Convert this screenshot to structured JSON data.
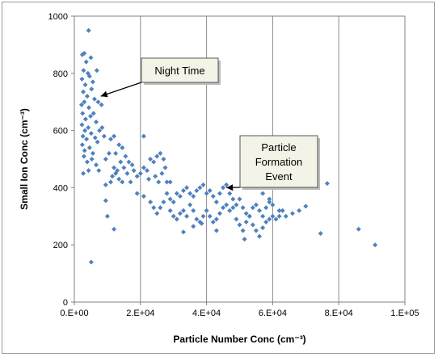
{
  "chart_data": {
    "type": "scatter",
    "xlabel": "Particle Number Conc (cm⁻³)",
    "ylabel": "Small Ion Conc (cm⁻³)",
    "xlim": [
      0,
      100000
    ],
    "ylim": [
      0,
      1000
    ],
    "x_ticks": [
      "0.E+00",
      "2.E+04",
      "4.E+04",
      "6.E+04",
      "8.E+04",
      "1.E+05"
    ],
    "y_ticks": [
      "0",
      "200",
      "400",
      "600",
      "800",
      "1000"
    ],
    "grid": "vertical",
    "marker_color": "#4f81bd",
    "annotations": [
      {
        "lines": [
          "Night Time"
        ],
        "points_to": [
          8000,
          720
        ]
      },
      {
        "lines": [
          "Particle",
          "Formation",
          "Event"
        ],
        "points_to": [
          46000,
          400
        ]
      }
    ],
    "points": [
      [
        4300,
        950
      ],
      [
        2400,
        865
      ],
      [
        3000,
        870
      ],
      [
        3600,
        840
      ],
      [
        5000,
        855
      ],
      [
        4100,
        800
      ],
      [
        2800,
        810
      ],
      [
        6800,
        810
      ],
      [
        2300,
        780
      ],
      [
        3300,
        760
      ],
      [
        4600,
        790
      ],
      [
        5600,
        770
      ],
      [
        2700,
        735
      ],
      [
        3900,
        720
      ],
      [
        5200,
        745
      ],
      [
        6100,
        710
      ],
      [
        7200,
        700
      ],
      [
        8200,
        690
      ],
      [
        2200,
        690
      ],
      [
        3000,
        700
      ],
      [
        4400,
        680
      ],
      [
        2500,
        660
      ],
      [
        3400,
        640
      ],
      [
        4900,
        650
      ],
      [
        5800,
        660
      ],
      [
        6600,
        630
      ],
      [
        7600,
        600
      ],
      [
        2300,
        620
      ],
      [
        3200,
        600
      ],
      [
        4200,
        610
      ],
      [
        2600,
        580
      ],
      [
        3700,
        570
      ],
      [
        5100,
        590
      ],
      [
        6300,
        575
      ],
      [
        8400,
        610
      ],
      [
        2400,
        550
      ],
      [
        3100,
        530
      ],
      [
        4600,
        540
      ],
      [
        5600,
        520
      ],
      [
        7000,
        560
      ],
      [
        9000,
        580
      ],
      [
        2900,
        510
      ],
      [
        3900,
        490
      ],
      [
        5300,
        500
      ],
      [
        6600,
        480
      ],
      [
        4300,
        460
      ],
      [
        2700,
        450
      ],
      [
        7400,
        460
      ],
      [
        9500,
        500
      ],
      [
        10500,
        520
      ],
      [
        12000,
        580
      ],
      [
        11000,
        570
      ],
      [
        12500,
        520
      ],
      [
        13500,
        550
      ],
      [
        14500,
        540
      ],
      [
        15500,
        510
      ],
      [
        16500,
        490
      ],
      [
        17500,
        480
      ],
      [
        12000,
        470
      ],
      [
        13000,
        460
      ],
      [
        14000,
        490
      ],
      [
        15000,
        470
      ],
      [
        11500,
        440
      ],
      [
        12500,
        450
      ],
      [
        13500,
        430
      ],
      [
        16000,
        450
      ],
      [
        18000,
        460
      ],
      [
        9500,
        410
      ],
      [
        11000,
        420
      ],
      [
        14500,
        420
      ],
      [
        17000,
        420
      ],
      [
        19000,
        440
      ],
      [
        20000,
        450
      ],
      [
        21000,
        470
      ],
      [
        22000,
        460
      ],
      [
        21000,
        580
      ],
      [
        23000,
        500
      ],
      [
        24000,
        490
      ],
      [
        25000,
        510
      ],
      [
        26000,
        520
      ],
      [
        27000,
        500
      ],
      [
        27500,
        470
      ],
      [
        22500,
        430
      ],
      [
        24500,
        440
      ],
      [
        25500,
        420
      ],
      [
        26500,
        450
      ],
      [
        28000,
        420
      ],
      [
        29000,
        420
      ],
      [
        9500,
        355
      ],
      [
        10000,
        300
      ],
      [
        12000,
        255
      ],
      [
        5100,
        140
      ],
      [
        19000,
        380
      ],
      [
        21000,
        370
      ],
      [
        23000,
        350
      ],
      [
        24000,
        330
      ],
      [
        25000,
        310
      ],
      [
        26000,
        330
      ],
      [
        27000,
        350
      ],
      [
        28000,
        380
      ],
      [
        29000,
        360
      ],
      [
        30000,
        350
      ],
      [
        31000,
        380
      ],
      [
        32000,
        370
      ],
      [
        33000,
        390
      ],
      [
        34000,
        400
      ],
      [
        35000,
        380
      ],
      [
        36000,
        370
      ],
      [
        37000,
        390
      ],
      [
        38000,
        400
      ],
      [
        39000,
        410
      ],
      [
        40000,
        380
      ],
      [
        41000,
        390
      ],
      [
        42000,
        370
      ],
      [
        43000,
        350
      ],
      [
        44000,
        380
      ],
      [
        45000,
        400
      ],
      [
        46000,
        410
      ],
      [
        47000,
        380
      ],
      [
        48000,
        360
      ],
      [
        29000,
        320
      ],
      [
        30000,
        300
      ],
      [
        31000,
        290
      ],
      [
        32000,
        310
      ],
      [
        33000,
        320
      ],
      [
        34000,
        300
      ],
      [
        35000,
        340
      ],
      [
        36000,
        320
      ],
      [
        37000,
        290
      ],
      [
        38000,
        280
      ],
      [
        39000,
        300
      ],
      [
        40000,
        320
      ],
      [
        41000,
        300
      ],
      [
        42000,
        280
      ],
      [
        43000,
        290
      ],
      [
        44000,
        310
      ],
      [
        33000,
        245
      ],
      [
        36000,
        265
      ],
      [
        38500,
        275
      ],
      [
        43000,
        250
      ],
      [
        45000,
        330
      ],
      [
        46000,
        340
      ],
      [
        47000,
        320
      ],
      [
        48000,
        330
      ],
      [
        49000,
        340
      ],
      [
        50000,
        360
      ],
      [
        51000,
        330
      ],
      [
        52000,
        310
      ],
      [
        53000,
        300
      ],
      [
        54000,
        330
      ],
      [
        55000,
        340
      ],
      [
        56000,
        320
      ],
      [
        57000,
        300
      ],
      [
        58000,
        330
      ],
      [
        59000,
        360
      ],
      [
        60000,
        340
      ],
      [
        49000,
        290
      ],
      [
        50000,
        270
      ],
      [
        51000,
        250
      ],
      [
        52000,
        280
      ],
      [
        53000,
        300
      ],
      [
        54000,
        270
      ],
      [
        55000,
        250
      ],
      [
        56000,
        230
      ],
      [
        57000,
        260
      ],
      [
        58000,
        280
      ],
      [
        59000,
        290
      ],
      [
        60000,
        300
      ],
      [
        61000,
        290
      ],
      [
        62000,
        300
      ],
      [
        51500,
        220
      ],
      [
        53000,
        410
      ],
      [
        57000,
        380
      ],
      [
        59000,
        350
      ],
      [
        62000,
        320
      ],
      [
        63000,
        320
      ],
      [
        64000,
        300
      ],
      [
        66000,
        310
      ],
      [
        68000,
        320
      ],
      [
        70000,
        335
      ],
      [
        74500,
        240
      ],
      [
        76500,
        415
      ],
      [
        86000,
        255
      ],
      [
        91000,
        200
      ]
    ]
  }
}
